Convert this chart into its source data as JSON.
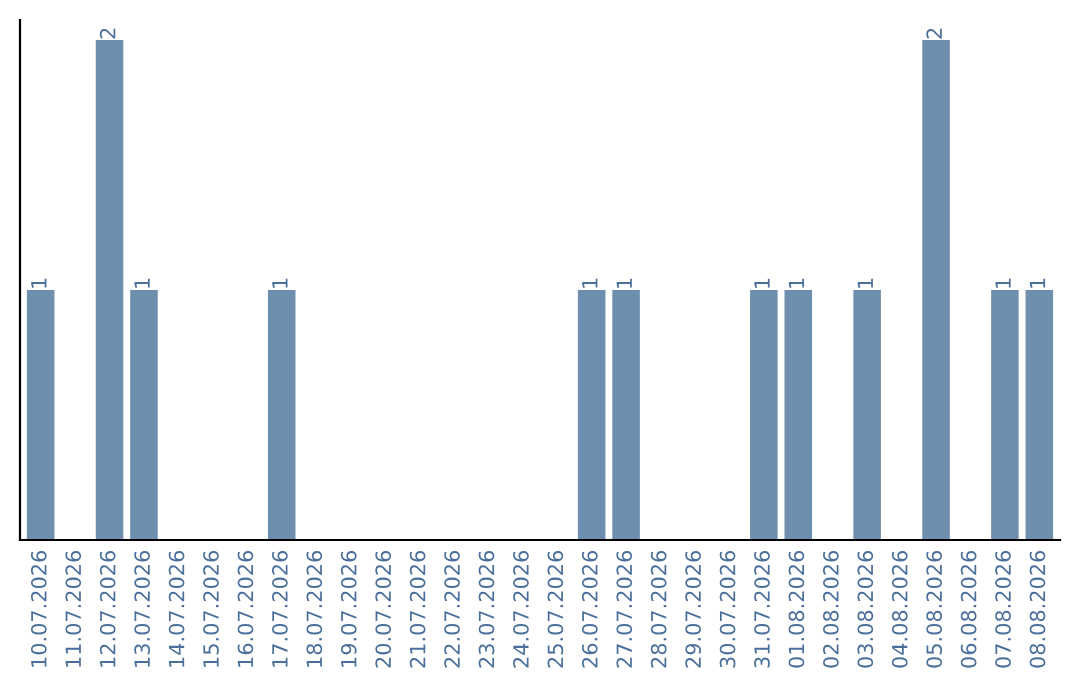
{
  "chart_data": {
    "type": "bar",
    "categories": [
      "10.07.2026",
      "11.07.2026",
      "12.07.2026",
      "13.07.2026",
      "14.07.2026",
      "15.07.2026",
      "16.07.2026",
      "17.07.2026",
      "18.07.2026",
      "19.07.2026",
      "20.07.2026",
      "21.07.2026",
      "22.07.2026",
      "23.07.2026",
      "24.07.2026",
      "25.07.2026",
      "26.07.2026",
      "27.07.2026",
      "28.07.2026",
      "29.07.2026",
      "30.07.2026",
      "31.07.2026",
      "01.08.2026",
      "02.08.2026",
      "03.08.2026",
      "04.08.2026",
      "05.08.2026",
      "06.08.2026",
      "07.08.2026",
      "08.08.2026"
    ],
    "values": [
      1,
      0,
      2,
      1,
      0,
      0,
      0,
      1,
      0,
      0,
      0,
      0,
      0,
      0,
      0,
      0,
      1,
      1,
      0,
      0,
      0,
      1,
      1,
      0,
      1,
      0,
      2,
      0,
      1,
      1
    ],
    "color": "#6d8fad",
    "value_labels": [
      "1",
      null,
      "2",
      "1",
      null,
      null,
      null,
      "1",
      null,
      null,
      null,
      null,
      null,
      null,
      null,
      null,
      "1",
      "1",
      null,
      null,
      null,
      "1",
      "1",
      null,
      "1",
      null,
      "2",
      null,
      "1",
      "1"
    ],
    "tick_labels": "x",
    "grid": false,
    "legend": false
  }
}
